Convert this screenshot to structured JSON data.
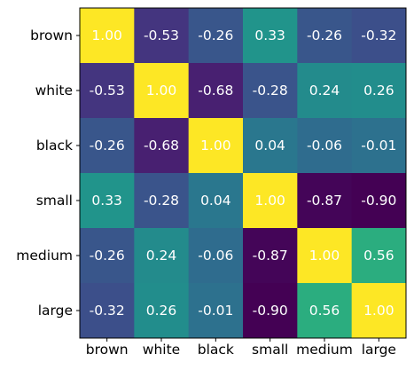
{
  "chart_data": {
    "type": "heatmap",
    "title": "",
    "xlabel": "",
    "ylabel": "",
    "x_categories": [
      "brown",
      "white",
      "black",
      "small",
      "medium",
      "large"
    ],
    "y_categories": [
      "brown",
      "white",
      "black",
      "small",
      "medium",
      "large"
    ],
    "values": [
      [
        1.0,
        -0.53,
        -0.26,
        0.33,
        -0.26,
        -0.32
      ],
      [
        -0.53,
        1.0,
        -0.68,
        -0.28,
        0.24,
        0.26
      ],
      [
        -0.26,
        -0.68,
        1.0,
        0.04,
        -0.06,
        -0.01
      ],
      [
        0.33,
        -0.28,
        0.04,
        1.0,
        -0.87,
        -0.9
      ],
      [
        -0.26,
        0.24,
        -0.06,
        -0.87,
        1.0,
        0.56
      ],
      [
        -0.32,
        0.26,
        -0.01,
        -0.9,
        0.56,
        1.0
      ]
    ],
    "value_format": "2 decimals",
    "colormap": "viridis",
    "cell_label_color": "#ffffff",
    "grid": false,
    "legend": "none"
  }
}
